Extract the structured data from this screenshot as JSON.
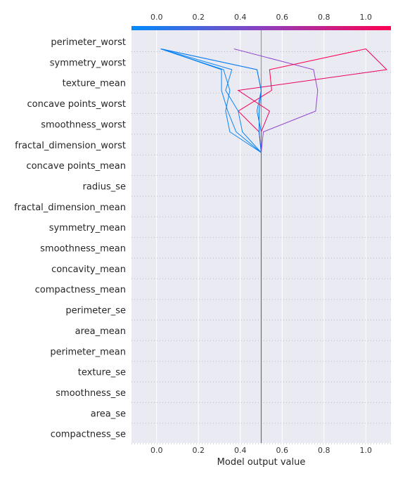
{
  "chart_data": {
    "type": "line",
    "xlabel": "Model output value",
    "xlim": [
      -0.12,
      1.12
    ],
    "xticks": [
      0.0,
      0.2,
      0.4,
      0.6,
      0.8,
      1.0
    ],
    "xtick_labels": [
      "0.0",
      "0.2",
      "0.4",
      "0.6",
      "0.8",
      "1.0"
    ],
    "base_value": 0.5,
    "grid": true,
    "colorbar": {
      "position": "top",
      "from_color": "#008bfb",
      "mid_color": "#8c3fbf",
      "to_color": "#ff0051"
    },
    "features": [
      "perimeter_worst",
      "symmetry_worst",
      "texture_mean",
      "concave points_worst",
      "smoothness_worst",
      "fractal_dimension_worst",
      "concave points_mean",
      "radius_se",
      "fractal_dimension_mean",
      "symmetry_mean",
      "smoothness_mean",
      "concavity_mean",
      "compactness_mean",
      "perimeter_se",
      "area_mean",
      "perimeter_mean",
      "texture_se",
      "smoothness_se",
      "area_se",
      "compactness_se"
    ],
    "series": [
      {
        "color": "#9047cf",
        "values": [
          0.5,
          0.5,
          0.5,
          0.5,
          0.5,
          0.5,
          0.5,
          0.5,
          0.5,
          0.5,
          0.5,
          0.5,
          0.5,
          0.5,
          0.5,
          0.51,
          0.76,
          0.77,
          0.75,
          0.37
        ]
      },
      {
        "color": "#ff0052",
        "values": [
          0.5,
          0.5,
          0.5,
          0.5,
          0.5,
          0.5,
          0.5,
          0.5,
          0.5,
          0.5,
          0.5,
          0.5,
          0.5,
          0.5,
          0.5,
          0.49,
          0.39,
          0.55,
          0.54,
          1.0
        ]
      },
      {
        "color": "#ea005f",
        "values": [
          0.5,
          0.5,
          0.5,
          0.5,
          0.5,
          0.5,
          0.5,
          0.5,
          0.5,
          0.5,
          0.5,
          0.5,
          0.5,
          0.5,
          0.5,
          0.5,
          0.54,
          0.39,
          1.1,
          1.0
        ]
      },
      {
        "color": "#006fe9",
        "values": [
          0.5,
          0.5,
          0.5,
          0.5,
          0.5,
          0.5,
          0.5,
          0.5,
          0.5,
          0.5,
          0.5,
          0.5,
          0.5,
          0.5,
          0.5,
          0.49,
          0.49,
          0.5,
          0.48,
          0.02
        ]
      },
      {
        "color": "#0a85f5",
        "values": [
          0.5,
          0.5,
          0.5,
          0.5,
          0.5,
          0.5,
          0.5,
          0.5,
          0.5,
          0.5,
          0.5,
          0.5,
          0.5,
          0.5,
          0.5,
          0.35,
          0.33,
          0.35,
          0.32,
          0.02
        ]
      },
      {
        "color": "#0c86f5",
        "values": [
          0.5,
          0.5,
          0.5,
          0.5,
          0.5,
          0.5,
          0.5,
          0.5,
          0.5,
          0.5,
          0.5,
          0.5,
          0.5,
          0.5,
          0.5,
          0.41,
          0.39,
          0.33,
          0.36,
          0.02
        ]
      },
      {
        "color": "#0784f4",
        "values": [
          0.5,
          0.5,
          0.5,
          0.5,
          0.5,
          0.5,
          0.5,
          0.5,
          0.5,
          0.5,
          0.5,
          0.5,
          0.5,
          0.5,
          0.5,
          0.38,
          0.34,
          0.31,
          0.31,
          0.02
        ]
      },
      {
        "color": "#0a7df0",
        "values": [
          0.5,
          0.5,
          0.5,
          0.5,
          0.5,
          0.5,
          0.5,
          0.5,
          0.5,
          0.5,
          0.5,
          0.5,
          0.5,
          0.5,
          0.5,
          0.5,
          0.48,
          0.5,
          0.48,
          0.02
        ]
      }
    ]
  }
}
